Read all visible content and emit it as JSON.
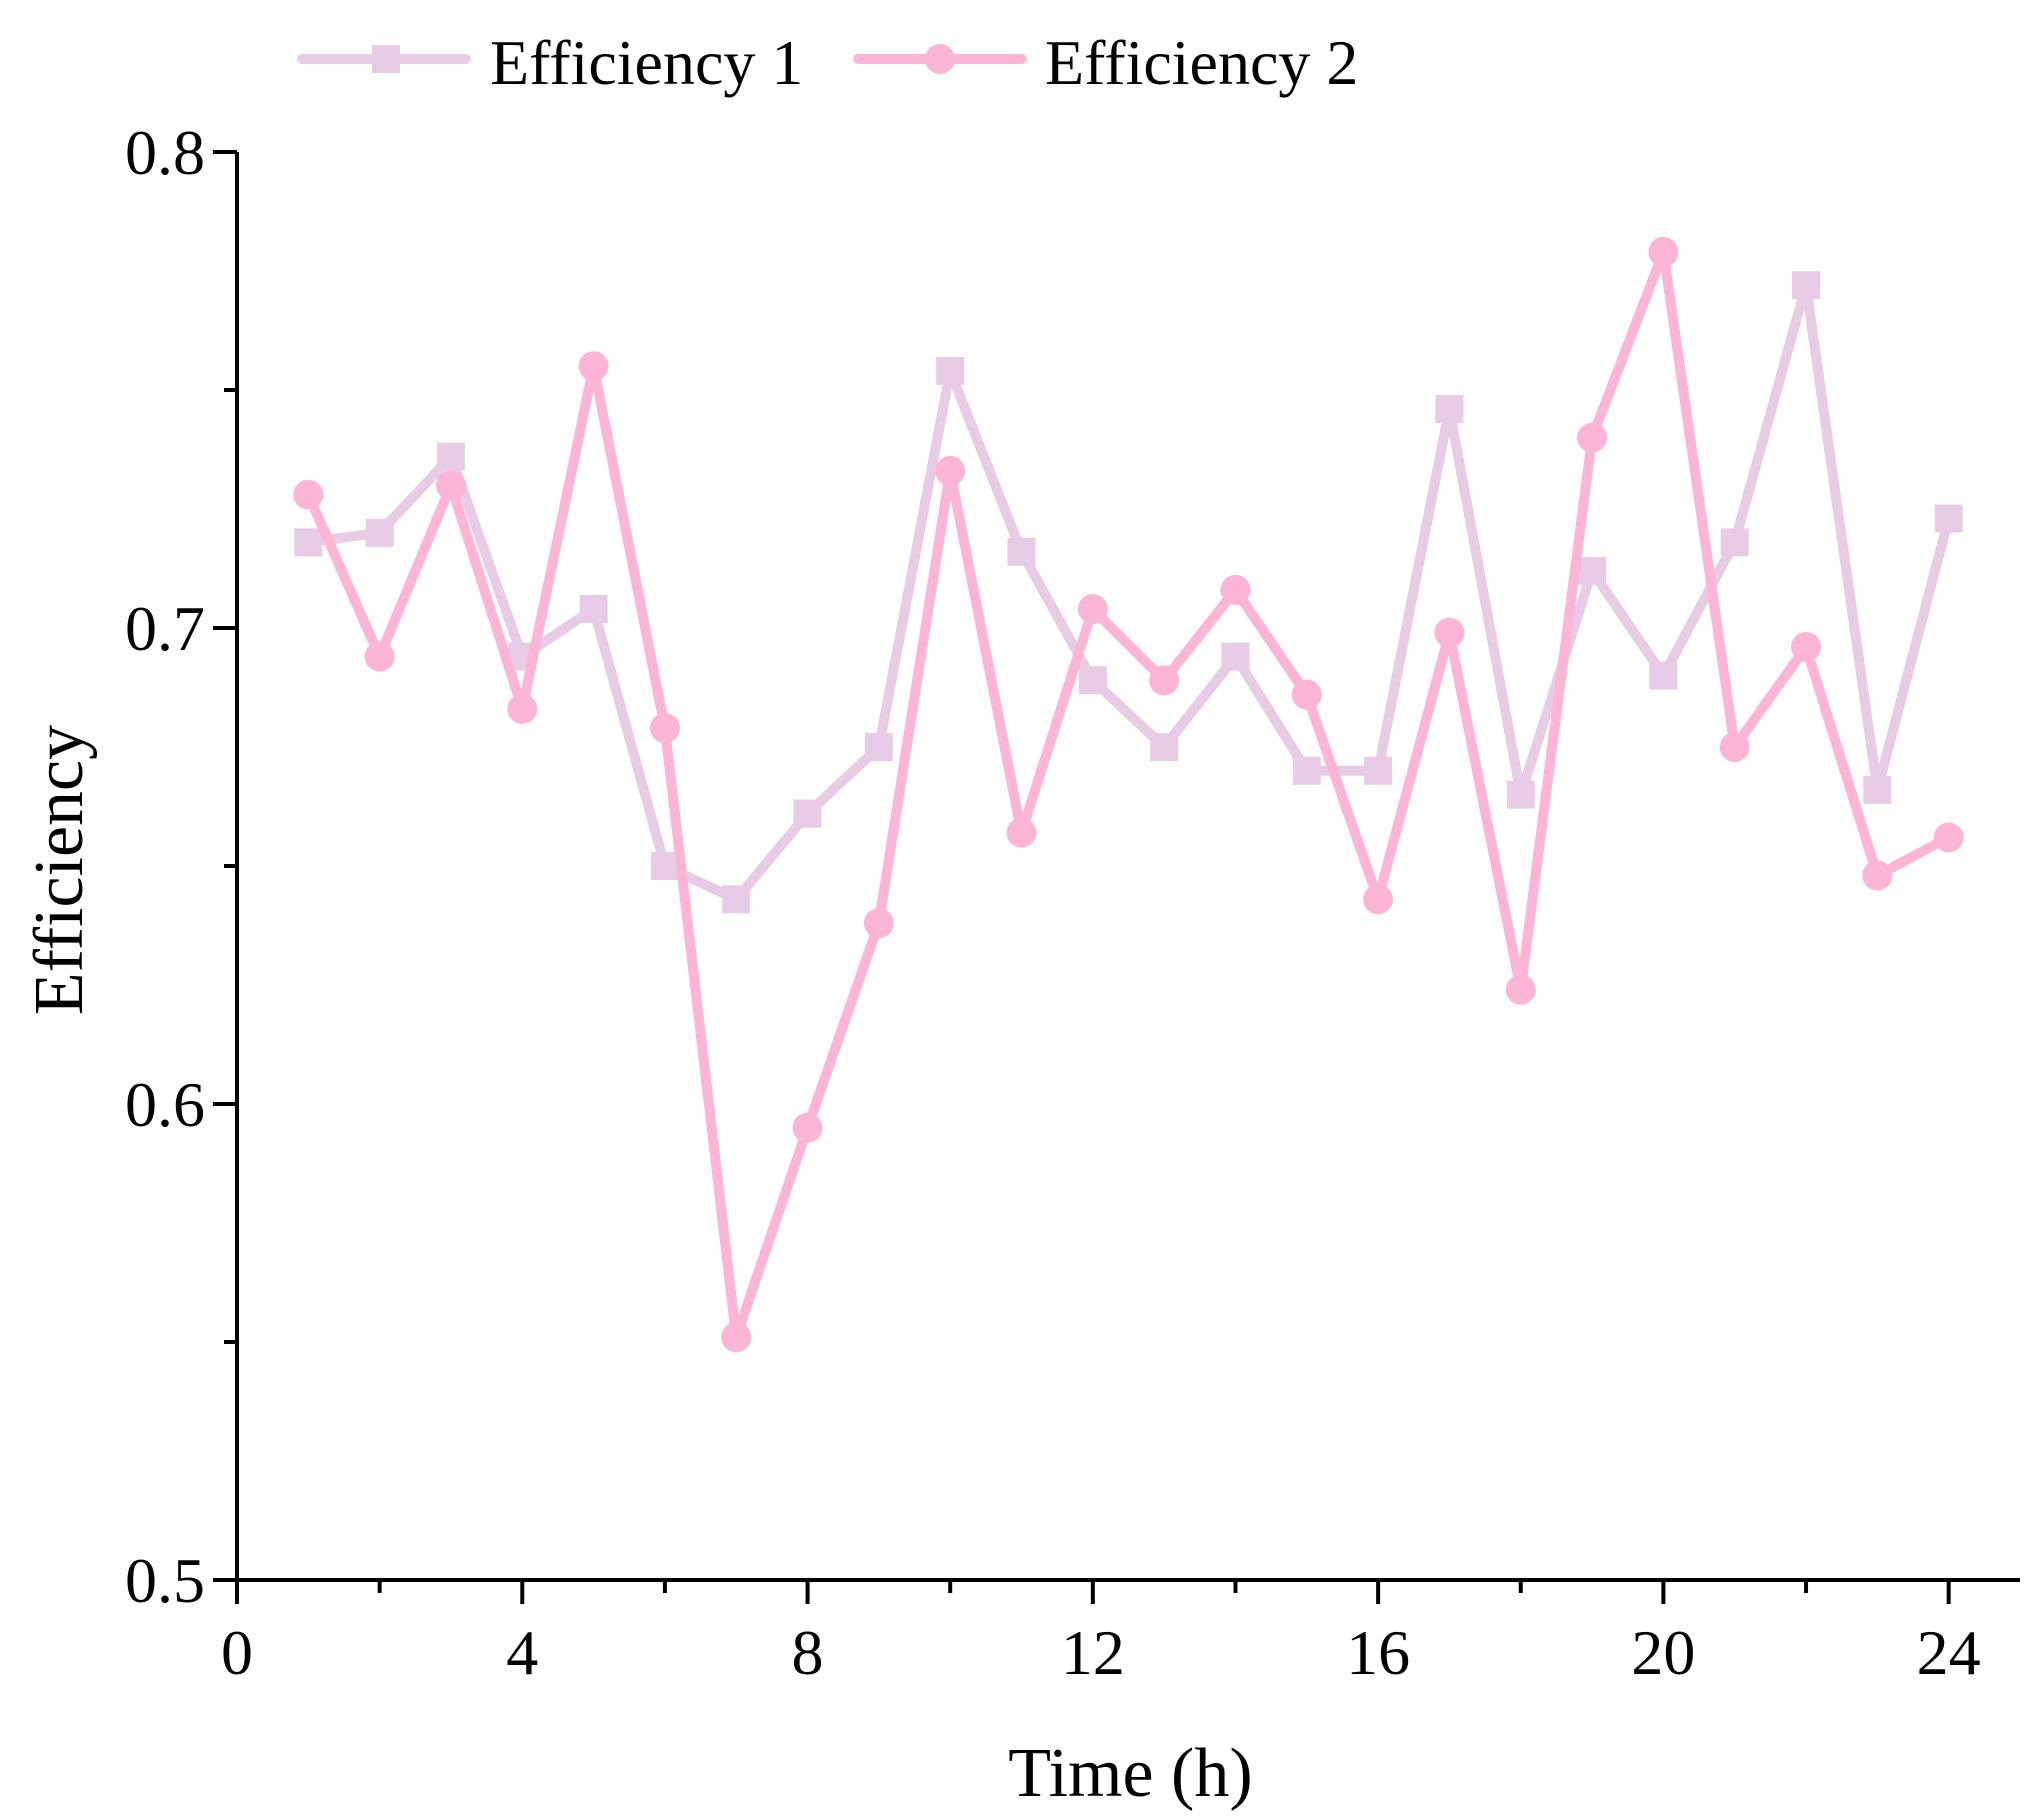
{
  "chart_data": {
    "type": "line",
    "title": "",
    "xlabel": "Time (h)",
    "ylabel": "Efficiency",
    "xlim": [
      0,
      25
    ],
    "ylim": [
      0.5,
      0.8
    ],
    "x_ticks": [
      0,
      4,
      8,
      12,
      16,
      20,
      24
    ],
    "x_tick_labels": [
      "0",
      "4",
      "8",
      "12",
      "16",
      "20",
      "24"
    ],
    "x_minor_ticks": [
      2,
      6,
      10,
      14,
      18,
      22
    ],
    "y_ticks": [
      0.5,
      0.6,
      0.7,
      0.8
    ],
    "y_tick_labels": [
      "0.5",
      "0.6",
      "0.7",
      "0.8"
    ],
    "y_minor_ticks": [
      0.55,
      0.65,
      0.75
    ],
    "grid": false,
    "legend_position": "top",
    "x": [
      1,
      2,
      3,
      4,
      5,
      6,
      7,
      8,
      9,
      10,
      11,
      12,
      13,
      14,
      15,
      16,
      17,
      18,
      19,
      20,
      21,
      22,
      23,
      24
    ],
    "series": [
      {
        "name": "Efficiency 1",
        "color": "#e8cce6",
        "marker": "square",
        "values": [
          0.718,
          0.72,
          0.736,
          0.694,
          0.704,
          0.65,
          0.643,
          0.661,
          0.675,
          0.754,
          0.716,
          0.689,
          0.675,
          0.694,
          0.67,
          0.67,
          0.746,
          0.665,
          0.712,
          0.69,
          0.718,
          0.772,
          0.666,
          0.723
        ]
      },
      {
        "name": "Efficiency 2",
        "color": "#fdb5d6",
        "marker": "circle",
        "values": [
          0.728,
          0.694,
          0.73,
          0.683,
          0.755,
          0.679,
          0.551,
          0.595,
          0.638,
          0.733,
          0.657,
          0.704,
          0.689,
          0.708,
          0.686,
          0.643,
          0.699,
          0.624,
          0.74,
          0.779,
          0.675,
          0.696,
          0.648,
          0.656
        ]
      }
    ]
  }
}
